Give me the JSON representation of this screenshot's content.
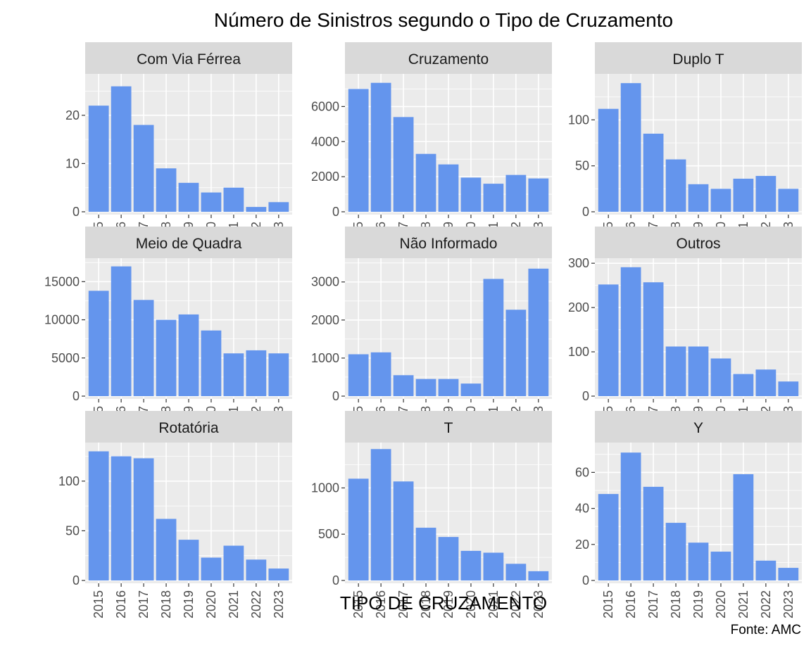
{
  "chart_data": {
    "type": "bar",
    "title": "Número de Sinistros segundo o Tipo de Cruzamento",
    "xlabel": "TIPO DE CRUZAMENTO",
    "ylabel": "",
    "caption": "Fonte: AMC",
    "categories": [
      "2015",
      "2016",
      "2017",
      "2018",
      "2019",
      "2020",
      "2021",
      "2022",
      "2023"
    ],
    "bar_color": "#6495ED",
    "panel_background": "#EBEBEB",
    "strip_background": "#D9D9D9",
    "grid": true,
    "facets": [
      {
        "name": "Com Via Férrea",
        "ylim": [
          0,
          28
        ],
        "yticks": [
          0,
          10,
          20
        ],
        "values": [
          22,
          26,
          18,
          9,
          6,
          4,
          5,
          1,
          2
        ]
      },
      {
        "name": "Cruzamento",
        "ylim": [
          0,
          7700
        ],
        "yticks": [
          0,
          2000,
          4000,
          6000
        ],
        "values": [
          7000,
          7350,
          5400,
          3300,
          2700,
          1950,
          1600,
          2100,
          1900
        ]
      },
      {
        "name": "Duplo T",
        "ylim": [
          0,
          147
        ],
        "yticks": [
          0,
          50,
          100
        ],
        "values": [
          112,
          140,
          85,
          57,
          30,
          25,
          36,
          39,
          25
        ]
      },
      {
        "name": "Meio de Quadra",
        "ylim": [
          0,
          17700
        ],
        "yticks": [
          0,
          5000,
          10000,
          15000
        ],
        "values": [
          13800,
          17000,
          12600,
          10000,
          10700,
          8600,
          5600,
          6000,
          5600
        ]
      },
      {
        "name": "Não Informado",
        "ylim": [
          0,
          3550
        ],
        "yticks": [
          0,
          1000,
          2000,
          3000
        ],
        "values": [
          1100,
          1150,
          550,
          450,
          450,
          330,
          3080,
          2270,
          3350
        ]
      },
      {
        "name": "Outros",
        "ylim": [
          0,
          305
        ],
        "yticks": [
          0,
          100,
          200,
          300
        ],
        "values": [
          252,
          291,
          257,
          112,
          112,
          85,
          50,
          60,
          33
        ]
      },
      {
        "name": "Rotatória",
        "ylim": [
          0,
          136
        ],
        "yticks": [
          0,
          50,
          100
        ],
        "values": [
          130,
          125,
          123,
          62,
          41,
          23,
          35,
          21,
          12
        ]
      },
      {
        "name": "T",
        "ylim": [
          0,
          1460
        ],
        "yticks": [
          0,
          500,
          1000
        ],
        "values": [
          1100,
          1420,
          1070,
          570,
          470,
          320,
          300,
          180,
          100
        ]
      },
      {
        "name": "Y",
        "ylim": [
          0,
          75
        ],
        "yticks": [
          0,
          20,
          40,
          60
        ],
        "values": [
          48,
          71,
          52,
          32,
          21,
          16,
          59,
          11,
          7
        ]
      }
    ]
  }
}
